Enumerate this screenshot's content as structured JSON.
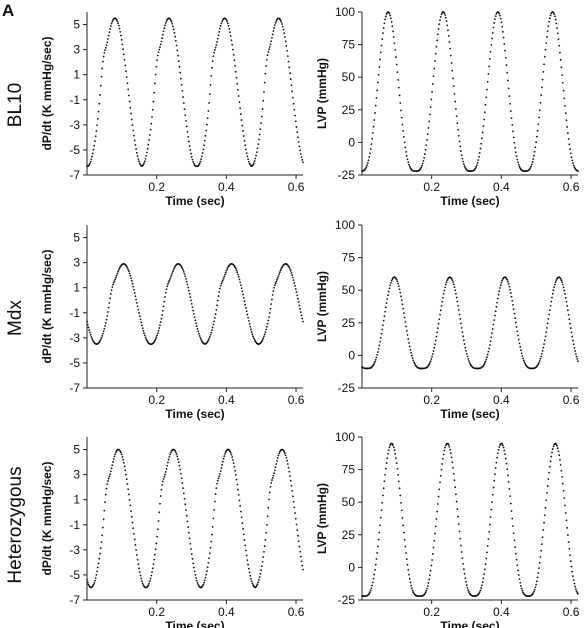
{
  "panel_label": "A",
  "rows": [
    "BL10",
    "Mdx",
    "Heterozygous"
  ],
  "chart_data": [
    {
      "type": "scatter",
      "row": "BL10",
      "title": "",
      "xlabel": "Time (sec)",
      "ylabel": "dP/dt (K mmHg/sec)",
      "xlim": [
        0,
        0.62
      ],
      "ylim": [
        -7,
        6
      ],
      "xticks": [
        0.2,
        0.4,
        0.6
      ],
      "yticks": [
        5,
        3,
        1,
        -1,
        -3,
        -5,
        -7
      ],
      "cycles": {
        "peaks_x": [
          0.08,
          0.235,
          0.395,
          0.55
        ],
        "max": 5.5,
        "min": -6.3,
        "shoulder": 1.0,
        "start_y": -5.8,
        "end_y": -5.8
      },
      "points": 300
    },
    {
      "type": "scatter",
      "row": "BL10",
      "title": "",
      "xlabel": "Time (sec)",
      "ylabel": "LVP (mmHg)",
      "xlim": [
        0,
        0.62
      ],
      "ylim": [
        -25,
        100
      ],
      "xticks": [
        0.2,
        0.4,
        0.6
      ],
      "yticks": [
        100,
        75,
        50,
        25,
        0,
        -25
      ],
      "cycles": {
        "peaks_x": [
          0.075,
          0.233,
          0.39,
          0.547
        ],
        "max": 100,
        "min": -22,
        "start_y": -17,
        "end_y": -17
      },
      "points": 300
    },
    {
      "type": "scatter",
      "row": "Mdx",
      "title": "",
      "xlabel": "Time (sec)",
      "ylabel": "dP/dt (K mmHg/sec)",
      "xlim": [
        0,
        0.62
      ],
      "ylim": [
        -7,
        6
      ],
      "xticks": [
        0.2,
        0.4,
        0.6
      ],
      "yticks": [
        5,
        3,
        1,
        -1,
        -3,
        -5,
        -7
      ],
      "cycles": {
        "peaks_x": [
          0.105,
          0.262,
          0.415,
          0.57
        ],
        "max": 2.9,
        "min": -3.5,
        "shoulder": -0.4,
        "start_y": -3.5,
        "end_y": -3.6
      },
      "points": 300
    },
    {
      "type": "scatter",
      "row": "Mdx",
      "title": "",
      "xlabel": "Time (sec)",
      "ylabel": "LVP (mmHg)",
      "xlim": [
        0,
        0.62
      ],
      "ylim": [
        -25,
        100
      ],
      "xticks": [
        0.2,
        0.4,
        0.6
      ],
      "yticks": [
        100,
        75,
        50,
        25,
        0,
        -25
      ],
      "cycles": {
        "peaks_x": [
          0.093,
          0.252,
          0.41,
          0.565
        ],
        "max": 60,
        "min": -10,
        "start_y": -8,
        "end_y": -9
      },
      "points": 300
    },
    {
      "type": "scatter",
      "row": "Heterozygous",
      "title": "",
      "xlabel": "Time (sec)",
      "ylabel": "dP/dt (K mmHg/sec)",
      "xlim": [
        0,
        0.62
      ],
      "ylim": [
        -7,
        6
      ],
      "xticks": [
        0.2,
        0.4,
        0.6
      ],
      "yticks": [
        5,
        3,
        1,
        -1,
        -3,
        -5,
        -7
      ],
      "cycles": {
        "peaks_x": [
          0.09,
          0.248,
          0.405,
          0.56
        ],
        "max": 5.0,
        "min": -6.0,
        "shoulder": 1.0,
        "start_y": -5.6,
        "end_y": -5.8
      },
      "points": 300
    },
    {
      "type": "scatter",
      "row": "Heterozygous",
      "title": "",
      "xlabel": "Time (sec)",
      "ylabel": "LVP (mmHg)",
      "xlim": [
        0,
        0.62
      ],
      "ylim": [
        -25,
        100
      ],
      "xticks": [
        0.2,
        0.4,
        0.6
      ],
      "yticks": [
        100,
        75,
        50,
        25,
        0,
        -25
      ],
      "cycles": {
        "peaks_x": [
          0.085,
          0.245,
          0.4,
          0.555
        ],
        "max": 95,
        "min": -22,
        "start_y": -18,
        "end_y": -19
      },
      "points": 300
    }
  ]
}
